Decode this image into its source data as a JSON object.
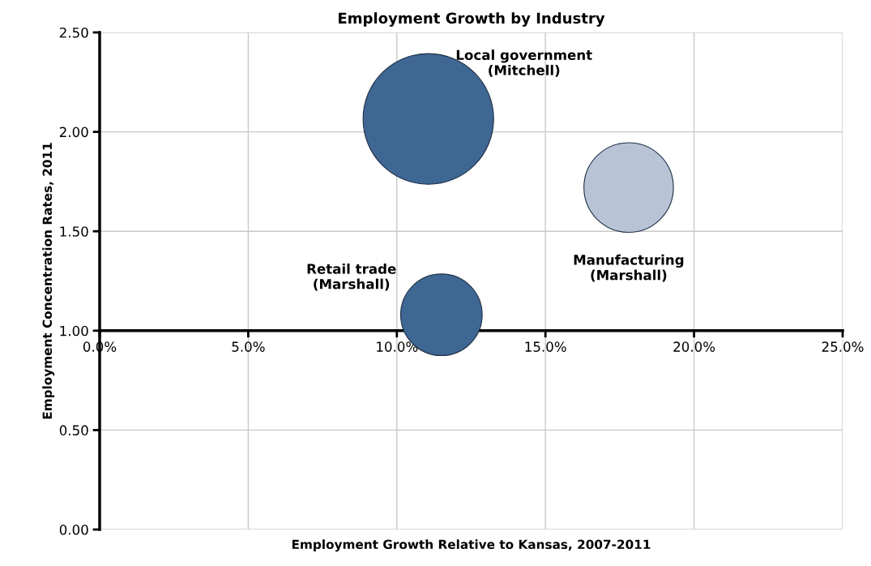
{
  "chart_data": {
    "type": "bubble",
    "title": "Employment Growth by Industry",
    "xlabel": "Employment Growth Relative to Kansas, 2007-2011",
    "ylabel": "Employment Concentration Rates, 2011",
    "x": [
      11.06,
      17.8,
      11.5
    ],
    "values": [
      2.065,
      1.72,
      1.08
    ],
    "sizes": [
      1,
      0.47,
      0.39
    ],
    "colors": [
      "#3f6794",
      "#b8c4d6",
      "#3f6794"
    ],
    "xlim": [
      0,
      25
    ],
    "xticks": [
      {
        "value": 0,
        "label": "0.0%"
      },
      {
        "value": 5,
        "label": "5.0%"
      },
      {
        "value": 10,
        "label": "10.0%"
      },
      {
        "value": 15,
        "label": "15.0%"
      },
      {
        "value": 20,
        "label": "20.0%"
      },
      {
        "value": 25,
        "label": "25.0%"
      }
    ],
    "ylim": [
      0,
      2.5
    ],
    "yticks": [
      {
        "value": 0,
        "label": "0.00"
      },
      {
        "value": 0.5,
        "label": "0.50"
      },
      {
        "value": 1,
        "label": "1.00"
      },
      {
        "value": 1.5,
        "label": "1.50"
      },
      {
        "value": 2,
        "label": "2.00"
      },
      {
        "value": 2.5,
        "label": "2.50"
      }
    ],
    "grid": true,
    "annotations": [
      "Local government\n(Mitchell)",
      "Manufacturing\n(Marshall)",
      "Retail trade\n(Marshall)"
    ]
  }
}
